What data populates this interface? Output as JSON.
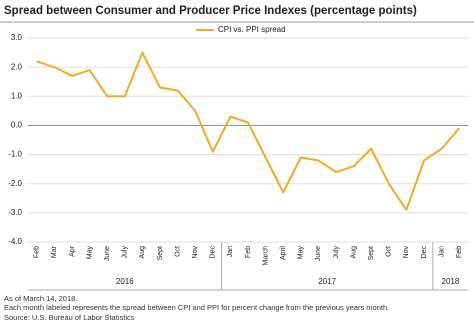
{
  "chart_data": {
    "type": "line",
    "title": "Spread between Consumer and Producer Price Indexes (percentage points)",
    "categories": [
      "Feb",
      "Mar",
      "Apr",
      "May",
      "June",
      "July",
      "Aug",
      "Sept",
      "Oct",
      "Nov",
      "Dec",
      "Jan",
      "Feb",
      "March",
      "April",
      "May",
      "June",
      "July",
      "Aug",
      "Sept",
      "Oct",
      "Nov",
      "Dec",
      "Jan",
      "Feb"
    ],
    "x_groups": [
      "2016",
      "2017",
      "2018"
    ],
    "series": [
      {
        "name": "CPI vs. PPI spread",
        "color": "#f7a823",
        "values": [
          2.2,
          2.0,
          1.7,
          1.9,
          1.0,
          1.0,
          2.5,
          1.3,
          1.2,
          0.5,
          -0.9,
          0.3,
          0.1,
          -1.1,
          -2.3,
          -1.1,
          -1.2,
          -1.6,
          -1.4,
          -0.8,
          -2.0,
          -2.9,
          -1.2,
          -0.8,
          -0.1
        ]
      }
    ],
    "ylim": [
      -4,
      3
    ],
    "yticks": [
      {
        "value": -4,
        "label": "-4.0"
      },
      {
        "value": -3,
        "label": "-3.0"
      },
      {
        "value": -2,
        "label": "-2.0"
      },
      {
        "value": -1,
        "label": "-1.0"
      },
      {
        "value": 0,
        "label": "0.0"
      },
      {
        "value": 1,
        "label": "1.0"
      },
      {
        "value": 2,
        "label": "2.0"
      },
      {
        "value": 3,
        "label": "3.0"
      }
    ],
    "grid": true,
    "notes": [
      "As of March 14, 2018.",
      "Each month labeled represents the spread between CPI and PPI for percent change from the previous years month.",
      "Source: U.S. Bureau of Labor Statistics"
    ]
  }
}
